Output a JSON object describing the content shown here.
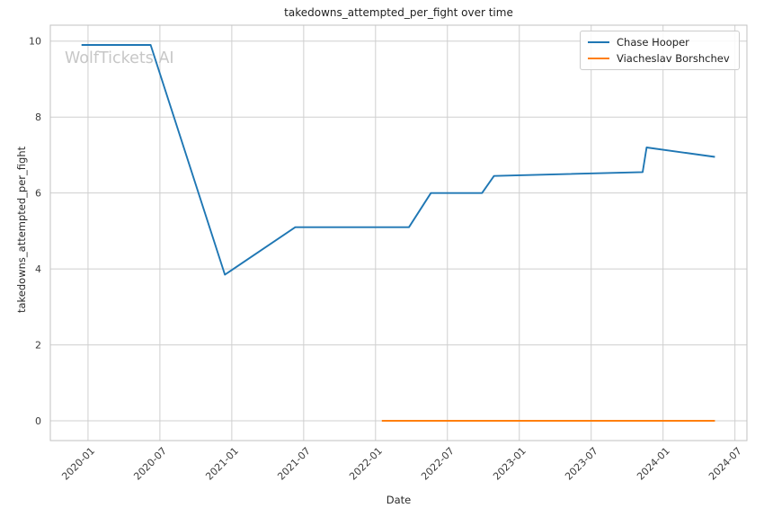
{
  "page": {
    "background": "#ffffff",
    "grid_color": "#cfcfcf",
    "spine_color": "#c2c2c2",
    "tick_label_color": "#3b3b3b"
  },
  "watermark": {
    "text": "WolfTickets.AI",
    "color": "#c7c7c7"
  },
  "chart_data": {
    "type": "line",
    "title": "takedowns_attempted_per_fight over time",
    "xlabel": "Date",
    "ylabel": "takedowns_attempted_per_fight",
    "grid": true,
    "legend_position": "upper right",
    "x_ticks": [
      "2020-01",
      "2020-07",
      "2021-01",
      "2021-07",
      "2022-01",
      "2022-07",
      "2023-01",
      "2023-07",
      "2024-01",
      "2024-07"
    ],
    "y_ticks": [
      0,
      2,
      4,
      6,
      8,
      10
    ],
    "xlim_dates": [
      "2019-09-27",
      "2024-08-01"
    ],
    "ylim": [
      -0.52,
      10.42
    ],
    "series": [
      {
        "name": "Chase Hooper",
        "color": "#1f77b4",
        "points": [
          {
            "date": "2019-12-15",
            "value": 9.9
          },
          {
            "date": "2020-06-08",
            "value": 9.9
          },
          {
            "date": "2020-12-14",
            "value": 3.85
          },
          {
            "date": "2021-06-10",
            "value": 5.1
          },
          {
            "date": "2022-03-25",
            "value": 5.1
          },
          {
            "date": "2022-05-20",
            "value": 6.0
          },
          {
            "date": "2022-09-28",
            "value": 6.0
          },
          {
            "date": "2022-10-28",
            "value": 6.45
          },
          {
            "date": "2023-11-10",
            "value": 6.55
          },
          {
            "date": "2023-11-20",
            "value": 7.2
          },
          {
            "date": "2024-05-11",
            "value": 6.95
          }
        ]
      },
      {
        "name": "Viacheslav Borshchev",
        "color": "#ff7f0e",
        "points": [
          {
            "date": "2022-01-17",
            "value": 0.0
          },
          {
            "date": "2024-05-11",
            "value": 0.0
          }
        ]
      }
    ]
  }
}
